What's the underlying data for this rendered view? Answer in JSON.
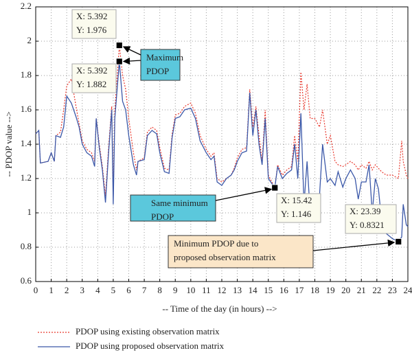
{
  "chart_data": {
    "type": "line",
    "x_label": "-- Time of the day (in hours) -->",
    "y_label": "-- PDOP value -->",
    "x": [
      0,
      0.2,
      0.3,
      0.8,
      1,
      1.2,
      1.3,
      1.6,
      1.8,
      2,
      2.3,
      2.6,
      2.8,
      3,
      3.3,
      3.6,
      3.8,
      3.9,
      4.1,
      4.3,
      4.5,
      4.7,
      4.9,
      5,
      5.1,
      5.392,
      5.6,
      5.8,
      6,
      6.3,
      6.5,
      6.6,
      7,
      7.2,
      7.5,
      7.8,
      8,
      8.3,
      8.6,
      8.8,
      9,
      9.3,
      9.6,
      10,
      10.3,
      10.6,
      11,
      11.3,
      11.5,
      11.7,
      12,
      12.3,
      12.6,
      12.8,
      13,
      13.3,
      13.6,
      13.8,
      14,
      14.2,
      14.4,
      14.6,
      14.8,
      15,
      15.42,
      15.6,
      15.9,
      16.2,
      16.5,
      16.7,
      16.9,
      17.1,
      17.3,
      17.5,
      17.7,
      18,
      18.3,
      18.5,
      18.8,
      19,
      19.3,
      19.5,
      19.8,
      20,
      20.3,
      20.6,
      20.8,
      21,
      21.3,
      21.5,
      21.7,
      21.9,
      22.1,
      22.3,
      22.6,
      23,
      23.39,
      23.6,
      23.7,
      23.9,
      24
    ],
    "series": [
      {
        "name": "PDOP using existing observation matrix",
        "color": "#e8372c",
        "dash": "dotted",
        "values": [
          1.46,
          1.48,
          1.29,
          1.3,
          1.35,
          1.3,
          1.45,
          1.47,
          1.6,
          1.74,
          1.78,
          1.62,
          1.52,
          1.42,
          1.37,
          1.35,
          1.3,
          1.55,
          1.4,
          1.27,
          1.1,
          1.38,
          1.62,
          1.1,
          1.6,
          1.976,
          1.8,
          1.72,
          1.55,
          1.35,
          1.25,
          1.3,
          1.32,
          1.47,
          1.5,
          1.48,
          1.38,
          1.26,
          1.25,
          1.46,
          1.57,
          1.58,
          1.62,
          1.64,
          1.58,
          1.45,
          1.37,
          1.33,
          1.35,
          1.2,
          1.18,
          1.2,
          1.22,
          1.26,
          1.32,
          1.37,
          1.38,
          1.72,
          1.5,
          1.62,
          1.45,
          1.3,
          1.6,
          1.22,
          1.146,
          1.28,
          1.22,
          1.25,
          1.27,
          1.45,
          1.3,
          1.82,
          1.6,
          1.75,
          1.55,
          1.55,
          1.5,
          1.6,
          1.4,
          1.45,
          1.3,
          1.28,
          1.27,
          1.28,
          1.3,
          1.28,
          1.25,
          1.28,
          1.26,
          1.3,
          1.25,
          1.28,
          1.26,
          1.24,
          1.22,
          1.22,
          1.2,
          1.42,
          1.3,
          1.22,
          1.2
        ]
      },
      {
        "name": "PDOP using proposed observation matrix",
        "color": "#3a57a8",
        "dash": "solid",
        "values": [
          1.46,
          1.48,
          1.29,
          1.3,
          1.35,
          1.3,
          1.45,
          1.44,
          1.5,
          1.68,
          1.64,
          1.56,
          1.5,
          1.4,
          1.35,
          1.33,
          1.27,
          1.55,
          1.38,
          1.25,
          1.06,
          1.35,
          1.6,
          1.05,
          1.55,
          1.882,
          1.65,
          1.6,
          1.45,
          1.28,
          1.22,
          1.3,
          1.31,
          1.45,
          1.48,
          1.46,
          1.35,
          1.24,
          1.23,
          1.44,
          1.55,
          1.56,
          1.6,
          1.61,
          1.55,
          1.42,
          1.35,
          1.31,
          1.33,
          1.18,
          1.16,
          1.2,
          1.22,
          1.25,
          1.3,
          1.35,
          1.36,
          1.7,
          1.45,
          1.6,
          1.4,
          1.28,
          1.55,
          1.2,
          1.146,
          1.27,
          1.2,
          1.23,
          1.25,
          1.4,
          1.2,
          1.58,
          1.05,
          1.3,
          1.0,
          1.02,
          1.1,
          1.4,
          1.18,
          1.2,
          1.16,
          1.24,
          1.15,
          1.2,
          1.25,
          1.2,
          1.08,
          1.18,
          1.18,
          1.28,
          1.0,
          1.2,
          1.14,
          0.96,
          0.88,
          0.85,
          0.8321,
          0.86,
          1.05,
          0.93,
          0.92
        ]
      }
    ],
    "xlim": [
      0,
      24
    ],
    "xticks": [
      0,
      1,
      2,
      3,
      4,
      5,
      6,
      7,
      8,
      9,
      10,
      11,
      12,
      13,
      14,
      15,
      16,
      17,
      18,
      19,
      20,
      21,
      22,
      23,
      24
    ],
    "ylim": [
      0.6,
      2.2
    ],
    "yticks": [
      0.6,
      0.8,
      1,
      1.2,
      1.4,
      1.6,
      1.8,
      2,
      2.2
    ],
    "grid": true,
    "datatips": [
      {
        "x": 5.392,
        "y": 1.976,
        "lines": [
          "X: 5.392",
          "Y: 1.976"
        ]
      },
      {
        "x": 5.392,
        "y": 1.882,
        "lines": [
          "X: 5.392",
          "Y: 1.882"
        ]
      },
      {
        "x": 15.42,
        "y": 1.146,
        "lines": [
          "X: 15.42",
          "Y: 1.146"
        ]
      },
      {
        "x": 23.39,
        "y": 0.8321,
        "lines": [
          "X: 23.39",
          "Y: 0.8321"
        ]
      }
    ],
    "annotations": [
      {
        "lines": [
          "Maximum",
          "PDOP"
        ],
        "color": "#5bc8dc"
      },
      {
        "lines": [
          "Same minimum",
          "PDOP"
        ],
        "color": "#5bc8dc"
      },
      {
        "lines": [
          "Minimum PDOP due to",
          "proposed observation matrix"
        ],
        "color": "#fbe6c8"
      }
    ]
  }
}
